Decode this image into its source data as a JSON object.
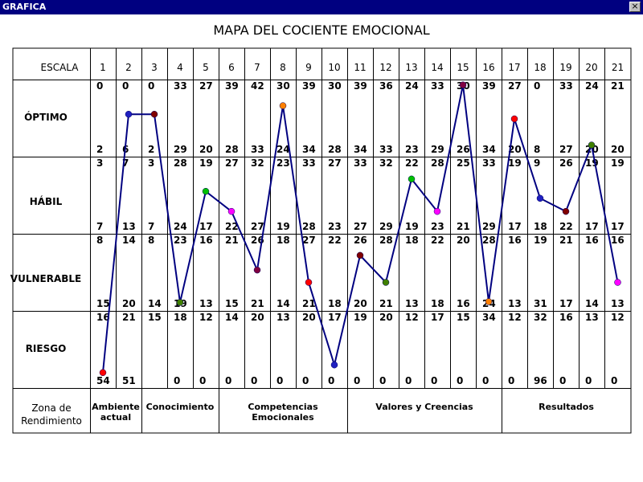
{
  "window": {
    "title": "GRAFICA",
    "close_label": "×"
  },
  "chart_data": {
    "type": "line",
    "title": "MAPA DEL COCIENTE EMOCIONAL",
    "header_label": "ESCALA",
    "scales": [
      "1",
      "2",
      "3",
      "4",
      "5",
      "6",
      "7",
      "8",
      "9",
      "10",
      "11",
      "12",
      "13",
      "14",
      "15",
      "16",
      "17",
      "18",
      "19",
      "20",
      "21"
    ],
    "bands": [
      {
        "name": "ÓPTIMO",
        "top": [
          "0",
          "0",
          "0",
          "33",
          "27",
          "39",
          "42",
          "30",
          "39",
          "30",
          "39",
          "36",
          "24",
          "33",
          "30",
          "39",
          "27",
          "0",
          "33",
          "24",
          "21"
        ],
        "bottom": [
          "2",
          "6",
          "2",
          "29",
          "20",
          "28",
          "33",
          "24",
          "34",
          "28",
          "34",
          "33",
          "23",
          "29",
          "26",
          "34",
          "20",
          "8",
          "27",
          "20",
          "20"
        ]
      },
      {
        "name": "HÁBIL",
        "top": [
          "3",
          "7",
          "3",
          "28",
          "19",
          "27",
          "32",
          "23",
          "33",
          "27",
          "33",
          "32",
          "22",
          "28",
          "25",
          "33",
          "19",
          "9",
          "26",
          "19",
          "19"
        ],
        "bottom": [
          "7",
          "13",
          "7",
          "24",
          "17",
          "22",
          "27",
          "19",
          "28",
          "23",
          "27",
          "29",
          "19",
          "23",
          "21",
          "29",
          "17",
          "18",
          "22",
          "17",
          "17"
        ]
      },
      {
        "name": "VULNERABLE",
        "top": [
          "8",
          "14",
          "8",
          "23",
          "16",
          "21",
          "26",
          "18",
          "27",
          "22",
          "26",
          "28",
          "18",
          "22",
          "20",
          "28",
          "16",
          "19",
          "21",
          "16",
          "16"
        ],
        "bottom": [
          "15",
          "20",
          "14",
          "19",
          "13",
          "15",
          "21",
          "14",
          "21",
          "18",
          "20",
          "21",
          "13",
          "18",
          "16",
          "24",
          "13",
          "31",
          "17",
          "14",
          "13"
        ]
      },
      {
        "name": "RIESGO",
        "top": [
          "16",
          "21",
          "15",
          "18",
          "12",
          "14",
          "20",
          "13",
          "20",
          "17",
          "19",
          "20",
          "12",
          "17",
          "15",
          "34",
          "12",
          "32",
          "16",
          "13",
          "12"
        ],
        "bottom": [
          "54",
          "51",
          "",
          "0",
          "0",
          "0",
          "0",
          "0",
          "0",
          "0",
          "0",
          "0",
          "0",
          "0",
          "0",
          "0",
          "0",
          "96",
          "0",
          "0",
          "0"
        ]
      }
    ],
    "zone_label": [
      "Zona de",
      "Rendimiento"
    ],
    "zones": [
      {
        "lines": [
          "Ambiente",
          "actual"
        ],
        "span": 2
      },
      {
        "lines": [
          "Conocimiento"
        ],
        "span": 3
      },
      {
        "lines": [
          "Competencias",
          "Emocionales"
        ],
        "span": 5
      },
      {
        "lines": [
          "Valores y Creencias"
        ],
        "span": 6
      },
      {
        "lines": [
          "Resultados"
        ],
        "span": 5
      }
    ],
    "line_color": "#000080",
    "points": [
      {
        "scale": 1,
        "band": "RIESGO",
        "frac": 0.2,
        "color": "#ff0000"
      },
      {
        "scale": 2,
        "band": "ÓPTIMO",
        "frac": 0.55,
        "color": "#2020c0"
      },
      {
        "scale": 3,
        "band": "ÓPTIMO",
        "frac": 0.55,
        "color": "#800000"
      },
      {
        "scale": 4,
        "band": "VULNERABLE",
        "frac": 0.11,
        "color": "#408000"
      },
      {
        "scale": 5,
        "band": "HÁBIL",
        "frac": 0.55,
        "color": "#00c000"
      },
      {
        "scale": 6,
        "band": "HÁBIL",
        "frac": 0.29,
        "color": "#ff00ff"
      },
      {
        "scale": 7,
        "band": "VULNERABLE",
        "frac": 0.53,
        "color": "#800040"
      },
      {
        "scale": 8,
        "band": "ÓPTIMO",
        "frac": 0.66,
        "color": "#ff8000"
      },
      {
        "scale": 9,
        "band": "VULNERABLE",
        "frac": 0.37,
        "color": "#ff0000"
      },
      {
        "scale": 10,
        "band": "RIESGO",
        "frac": 0.3,
        "color": "#2020c0"
      },
      {
        "scale": 11,
        "band": "VULNERABLE",
        "frac": 0.72,
        "color": "#800000"
      },
      {
        "scale": 12,
        "band": "VULNERABLE",
        "frac": 0.37,
        "color": "#408000"
      },
      {
        "scale": 13,
        "band": "HÁBIL",
        "frac": 0.71,
        "color": "#00c000"
      },
      {
        "scale": 14,
        "band": "HÁBIL",
        "frac": 0.29,
        "color": "#ff00ff"
      },
      {
        "scale": 15,
        "band": "ÓPTIMO",
        "frac": 0.93,
        "color": "#800040"
      },
      {
        "scale": 16,
        "band": "VULNERABLE",
        "frac": 0.12,
        "color": "#ff8000"
      },
      {
        "scale": 17,
        "band": "ÓPTIMO",
        "frac": 0.49,
        "color": "#ff0000"
      },
      {
        "scale": 18,
        "band": "HÁBIL",
        "frac": 0.46,
        "color": "#2020c0"
      },
      {
        "scale": 19,
        "band": "HÁBIL",
        "frac": 0.29,
        "color": "#800000"
      },
      {
        "scale": 20,
        "band": "ÓPTIMO",
        "frac": 0.15,
        "color": "#408000"
      },
      {
        "scale": 21,
        "band": "VULNERABLE",
        "frac": 0.37,
        "color": "#ff00ff"
      }
    ]
  }
}
